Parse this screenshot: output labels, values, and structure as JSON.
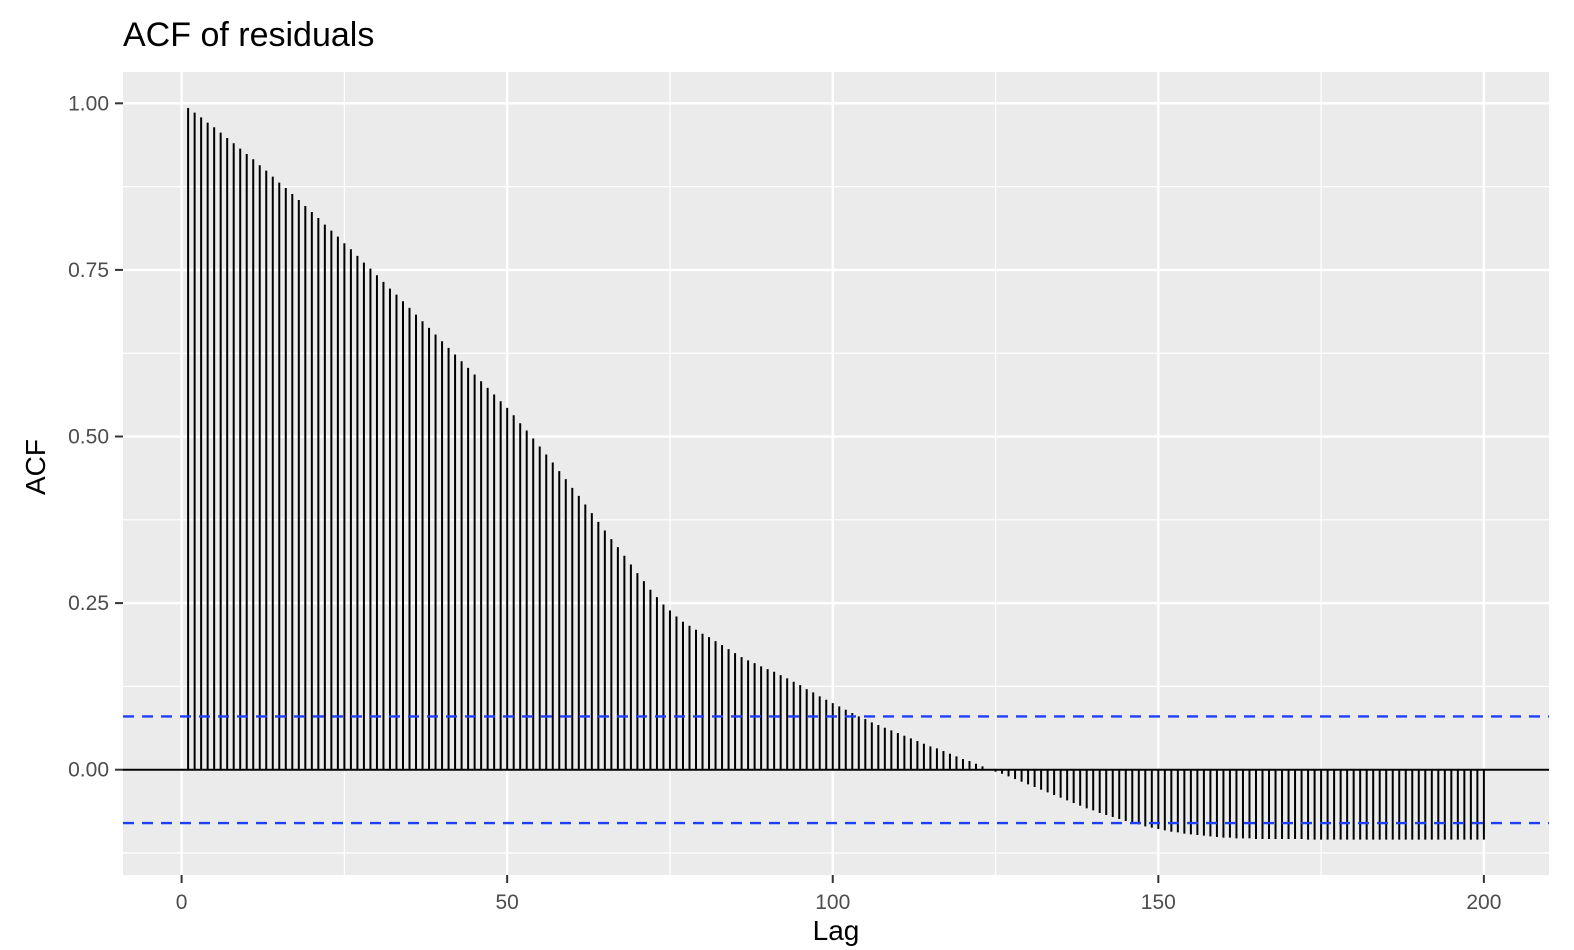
{
  "chart_data": {
    "type": "bar",
    "title": "ACF of residuals",
    "xlabel": "Lag",
    "ylabel": "ACF",
    "xlim": [
      -9,
      210
    ],
    "ylim": [
      -0.158,
      1.047
    ],
    "x_ticks": [
      0,
      50,
      100,
      150,
      200
    ],
    "x_tick_labels": [
      "0",
      "50",
      "100",
      "150",
      "200"
    ],
    "y_ticks": [
      0,
      0.25,
      0.5,
      0.75,
      1.0
    ],
    "y_tick_labels": [
      "0.00",
      "0.25",
      "0.50",
      "0.75",
      "1.00"
    ],
    "grid": true,
    "confidence_bounds": [
      0.08,
      -0.08
    ],
    "confidence_color": "#1f3fff",
    "background_color": "#ebebeb",
    "bar_color": "#000000",
    "lag_start": 1,
    "lag_end": 200,
    "values": [
      0.993,
      0.986,
      0.979,
      0.971,
      0.964,
      0.956,
      0.948,
      0.94,
      0.932,
      0.924,
      0.916,
      0.907,
      0.899,
      0.89,
      0.881,
      0.873,
      0.864,
      0.855,
      0.846,
      0.837,
      0.828,
      0.818,
      0.809,
      0.8,
      0.79,
      0.781,
      0.771,
      0.761,
      0.752,
      0.742,
      0.732,
      0.722,
      0.713,
      0.703,
      0.693,
      0.683,
      0.673,
      0.663,
      0.653,
      0.643,
      0.633,
      0.623,
      0.613,
      0.603,
      0.593,
      0.583,
      0.573,
      0.563,
      0.553,
      0.543,
      0.532,
      0.52,
      0.509,
      0.497,
      0.485,
      0.473,
      0.461,
      0.448,
      0.436,
      0.423,
      0.411,
      0.398,
      0.385,
      0.372,
      0.359,
      0.346,
      0.334,
      0.321,
      0.308,
      0.295,
      0.283,
      0.27,
      0.259,
      0.248,
      0.239,
      0.23,
      0.222,
      0.216,
      0.21,
      0.204,
      0.199,
      0.193,
      0.187,
      0.181,
      0.175,
      0.169,
      0.164,
      0.16,
      0.155,
      0.151,
      0.147,
      0.142,
      0.137,
      0.132,
      0.127,
      0.121,
      0.116,
      0.11,
      0.105,
      0.1,
      0.095,
      0.09,
      0.085,
      0.08,
      0.076,
      0.071,
      0.067,
      0.063,
      0.059,
      0.055,
      0.051,
      0.047,
      0.043,
      0.039,
      0.035,
      0.032,
      0.028,
      0.024,
      0.02,
      0.016,
      0.013,
      0.009,
      0.005,
      0.001,
      -0.003,
      -0.006,
      -0.01,
      -0.014,
      -0.018,
      -0.022,
      -0.026,
      -0.03,
      -0.034,
      -0.038,
      -0.042,
      -0.046,
      -0.05,
      -0.054,
      -0.058,
      -0.061,
      -0.065,
      -0.068,
      -0.071,
      -0.074,
      -0.077,
      -0.08,
      -0.082,
      -0.085,
      -0.087,
      -0.089,
      -0.091,
      -0.093,
      -0.094,
      -0.096,
      -0.097,
      -0.098,
      -0.099,
      -0.1,
      -0.101,
      -0.102,
      -0.102,
      -0.103,
      -0.103,
      -0.103,
      -0.104,
      -0.104,
      -0.104,
      -0.104,
      -0.104,
      -0.104,
      -0.104,
      -0.104,
      -0.105,
      -0.105,
      -0.105,
      -0.105,
      -0.105,
      -0.105,
      -0.105,
      -0.105,
      -0.105,
      -0.105,
      -0.105,
      -0.105,
      -0.105,
      -0.105,
      -0.105,
      -0.105,
      -0.105,
      -0.105,
      -0.105,
      -0.105,
      -0.105,
      -0.105,
      -0.105,
      -0.105,
      -0.105,
      -0.105,
      -0.105,
      -0.105
    ]
  }
}
